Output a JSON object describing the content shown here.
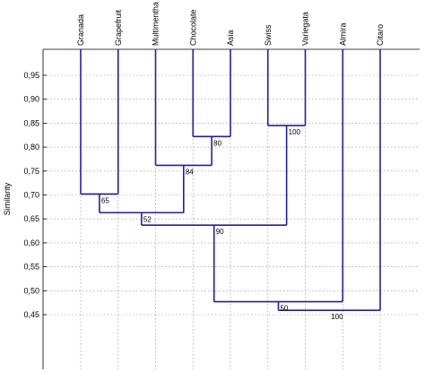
{
  "chart_data": {
    "type": "dendrogram",
    "ylabel": "Similarity",
    "ylim": [
      0.44,
      1.0
    ],
    "yticks": [
      "0,45",
      "0,50",
      "0,55",
      "0,60",
      "0,65",
      "0,70",
      "0,75",
      "0,80",
      "0,85",
      "0,90",
      "0,95"
    ],
    "ytick_values": [
      0.45,
      0.5,
      0.55,
      0.6,
      0.65,
      0.7,
      0.75,
      0.8,
      0.85,
      0.9,
      0.95
    ],
    "grid": true,
    "leaves": [
      "Granada",
      "Grapefruit",
      "Multimentha",
      "Chocolate",
      "Asia",
      "Swiss",
      "Variegata",
      "Almira",
      "Citaro"
    ],
    "merges": [
      {
        "a": "L1",
        "b": "L2",
        "similarity": 0.702,
        "support": "65"
      },
      {
        "a": "L4",
        "b": "L5",
        "similarity": 0.822,
        "support": "80"
      },
      {
        "a": "L3",
        "b": "M2",
        "similarity": 0.762,
        "support": "84"
      },
      {
        "a": "M1",
        "b": "M3",
        "similarity": 0.663,
        "support": "52"
      },
      {
        "a": "L6",
        "b": "L7",
        "similarity": 0.845,
        "support": "100"
      },
      {
        "a": "M4",
        "b": "M5",
        "similarity": 0.637,
        "support": "90"
      },
      {
        "a": "M6",
        "b": "L8",
        "similarity": 0.477,
        "support": "50"
      },
      {
        "a": "M7",
        "b": "L9",
        "similarity": 0.459,
        "support": "100"
      }
    ],
    "colors": {
      "tree": "#1f1fa8",
      "grid": "#888888",
      "frame": "#000000"
    }
  }
}
